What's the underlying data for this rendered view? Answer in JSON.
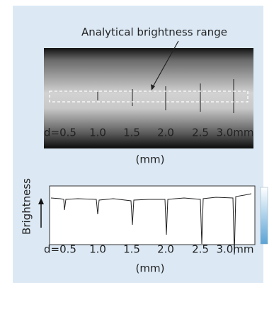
{
  "callout": {
    "label": "Analytical brightness range"
  },
  "image_axis": {
    "labels": [
      "d=0.5",
      "1.0",
      "1.5",
      "2.0",
      "2.5",
      "3.0mm"
    ],
    "unit": "(mm)"
  },
  "brightness_plot": {
    "y_label": "Brightness",
    "labels": [
      "d=0.5",
      "1.0",
      "1.5",
      "2.0",
      "2.5",
      "3.0mm"
    ],
    "unit": "(mm)"
  }
}
